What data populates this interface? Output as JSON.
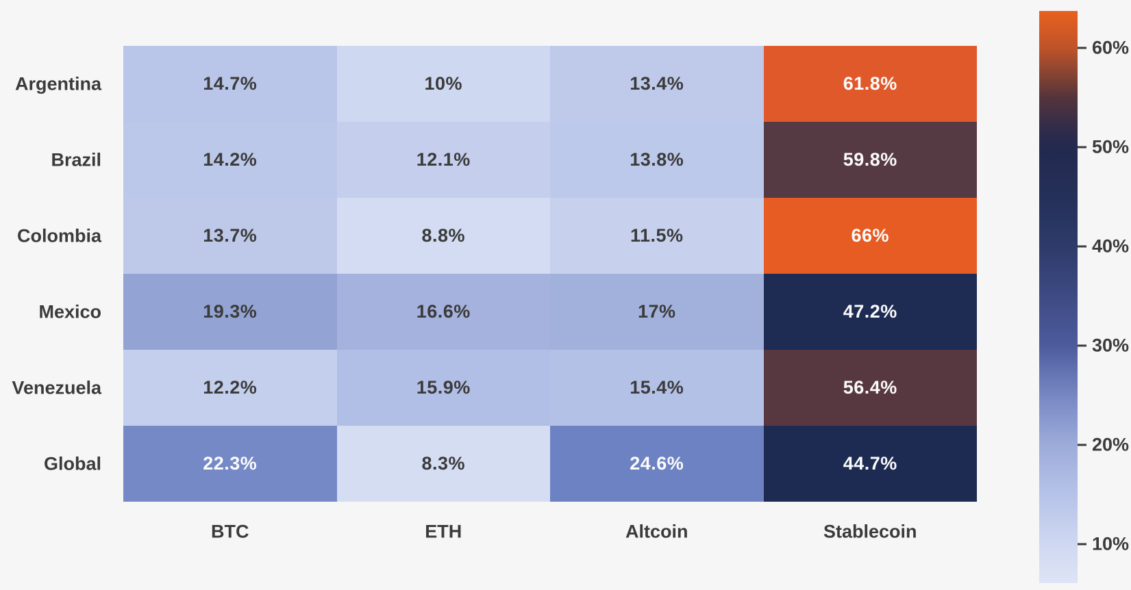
{
  "figure": {
    "background": "#f6f6f7",
    "text_color": "#3b3b3b",
    "annotation_light_text": "#fbfbfb"
  },
  "chart_data": {
    "type": "heatmap",
    "title": "",
    "xlabel": "",
    "ylabel": "",
    "rows": [
      "Argentina",
      "Brazil",
      "Colombia",
      "Mexico",
      "Venezuela",
      "Global"
    ],
    "columns": [
      "BTC",
      "ETH",
      "Altcoin",
      "Stablecoin"
    ],
    "values": [
      [
        14.7,
        10,
        13.4,
        61.8
      ],
      [
        14.2,
        12.1,
        13.8,
        59.8
      ],
      [
        13.7,
        8.8,
        11.5,
        66
      ],
      [
        19.3,
        16.6,
        17,
        47.2
      ],
      [
        12.2,
        15.9,
        15.4,
        56.4
      ],
      [
        22.3,
        8.3,
        24.6,
        44.7
      ]
    ],
    "cell_labels": [
      [
        "14.7%",
        "10%",
        "13.4%",
        "61.8%"
      ],
      [
        "14.2%",
        "12.1%",
        "13.8%",
        "59.8%"
      ],
      [
        "13.7%",
        "8.8%",
        "11.5%",
        "66%"
      ],
      [
        "19.3%",
        "16.6%",
        "17%",
        "47.2%"
      ],
      [
        "12.2%",
        "15.9%",
        "15.4%",
        "56.4%"
      ],
      [
        "22.3%",
        "8.3%",
        "24.6%",
        "44.7%"
      ]
    ],
    "cell_colors": [
      [
        "#bac6e9",
        "#cfd8f1",
        "#bfcaeb",
        "#e0592b"
      ],
      [
        "#bcc8e9",
        "#c5cfed",
        "#bdc9ea",
        "#563a43"
      ],
      [
        "#bec9ea",
        "#d3dcf2",
        "#c7d1ee",
        "#e65c22"
      ],
      [
        "#93a3d3",
        "#a4b2dd",
        "#a2b1dc",
        "#1e2b53"
      ],
      [
        "#c4cfed",
        "#b1bee5",
        "#b4c1e7",
        "#583840"
      ],
      [
        "#7589c7",
        "#d5ddf3",
        "#6c82c3",
        "#1d2a52"
      ]
    ],
    "value_unit": "%",
    "grid_on": false,
    "legend_position": "colorbar-right",
    "colorbar": {
      "tick_labels": [
        "60%",
        "50%",
        "40%",
        "30%",
        "20%",
        "10%"
      ],
      "tick_values": [
        60,
        50,
        40,
        30,
        20,
        10
      ],
      "scale_min": 6.1,
      "scale_max": 63.7,
      "gradient_stops": [
        {
          "pos": 0,
          "color": "#dee4f6"
        },
        {
          "pos": 6.8,
          "color": "#cfd8f1"
        },
        {
          "pos": 16.4,
          "color": "#b3c0e7"
        },
        {
          "pos": 24.2,
          "color": "#9dabda"
        },
        {
          "pos": 32.8,
          "color": "#7787c3"
        },
        {
          "pos": 41.5,
          "color": "#4d5b9d"
        },
        {
          "pos": 58.9,
          "color": "#2e3a69"
        },
        {
          "pos": 67.5,
          "color": "#243059"
        },
        {
          "pos": 76.2,
          "color": "#23294f"
        },
        {
          "pos": 79.7,
          "color": "#332c49"
        },
        {
          "pos": 84.9,
          "color": "#55343c"
        },
        {
          "pos": 88.4,
          "color": "#7f4233"
        },
        {
          "pos": 93.6,
          "color": "#c05329"
        },
        {
          "pos": 100,
          "color": "#e8611f"
        }
      ]
    }
  }
}
